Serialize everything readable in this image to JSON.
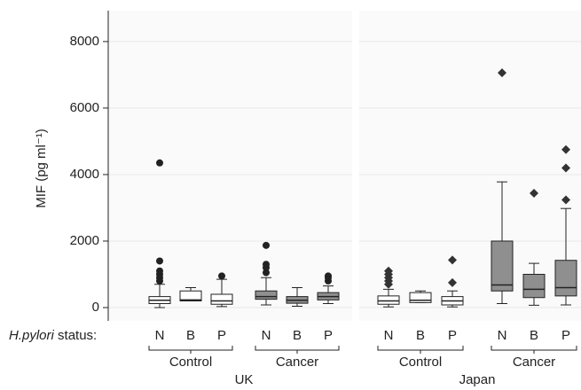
{
  "chart_data": {
    "type": "box",
    "y_label": "MIF (pg ml⁻¹)",
    "ylim": [
      -400,
      8930
    ],
    "yticks": [
      0,
      2000,
      4000,
      6000,
      8000
    ],
    "grid": true,
    "x_prefix": "H.pylori",
    "x_label": "status:",
    "panels": [
      {
        "name": "UK",
        "marker": "circle",
        "groups": [
          {
            "name": "Control",
            "fill": "#ffffff",
            "categories": [
              "N",
              "B",
              "P"
            ],
            "boxes": [
              {
                "min": 0,
                "q1": 120,
                "median": 220,
                "q3": 330,
                "max": 700,
                "outliers": [
                  800,
                  900,
                  1000,
                  1100,
                  1400,
                  4350
                ]
              },
              {
                "min": 200,
                "q1": 200,
                "median": 230,
                "q3": 500,
                "max": 600,
                "outliers": []
              },
              {
                "min": 30,
                "q1": 100,
                "median": 200,
                "q3": 400,
                "max": 850,
                "outliers": [
                  950
                ]
              }
            ]
          },
          {
            "name": "Cancer",
            "fill": "#8f8f8f",
            "categories": [
              "N",
              "B",
              "P"
            ],
            "boxes": [
              {
                "min": 80,
                "q1": 250,
                "median": 330,
                "q3": 500,
                "max": 900,
                "outliers": [
                  1050,
                  1200,
                  1300,
                  1870
                ]
              },
              {
                "min": 40,
                "q1": 130,
                "median": 220,
                "q3": 330,
                "max": 600,
                "outliers": []
              },
              {
                "min": 120,
                "q1": 230,
                "median": 330,
                "q3": 450,
                "max": 650,
                "outliers": [
                  800,
                  900,
                  950
                ]
              }
            ]
          }
        ]
      },
      {
        "name": "Japan",
        "marker": "diamond",
        "groups": [
          {
            "name": "Control",
            "fill": "#ffffff",
            "categories": [
              "N",
              "B",
              "P"
            ],
            "boxes": [
              {
                "min": 20,
                "q1": 100,
                "median": 200,
                "q3": 350,
                "max": 550,
                "outliers": [
                  700,
                  800,
                  900,
                  1000,
                  1100
                ]
              },
              {
                "min": 150,
                "q1": 150,
                "median": 220,
                "q3": 450,
                "max": 500,
                "outliers": []
              },
              {
                "min": 20,
                "q1": 80,
                "median": 200,
                "q3": 330,
                "max": 500,
                "outliers": [
                  750,
                  1430
                ]
              }
            ]
          },
          {
            "name": "Cancer",
            "fill": "#8f8f8f",
            "categories": [
              "N",
              "B",
              "P"
            ],
            "boxes": [
              {
                "min": 120,
                "q1": 500,
                "median": 680,
                "q3": 2000,
                "max": 3780,
                "outliers": [
                  7060
                ]
              },
              {
                "min": 70,
                "q1": 300,
                "median": 550,
                "q3": 1000,
                "max": 1330,
                "outliers": [
                  3440
                ]
              },
              {
                "min": 80,
                "q1": 350,
                "median": 600,
                "q3": 1420,
                "max": 2980,
                "outliers": [
                  3240,
                  4200,
                  4750
                ]
              }
            ]
          }
        ]
      }
    ]
  }
}
